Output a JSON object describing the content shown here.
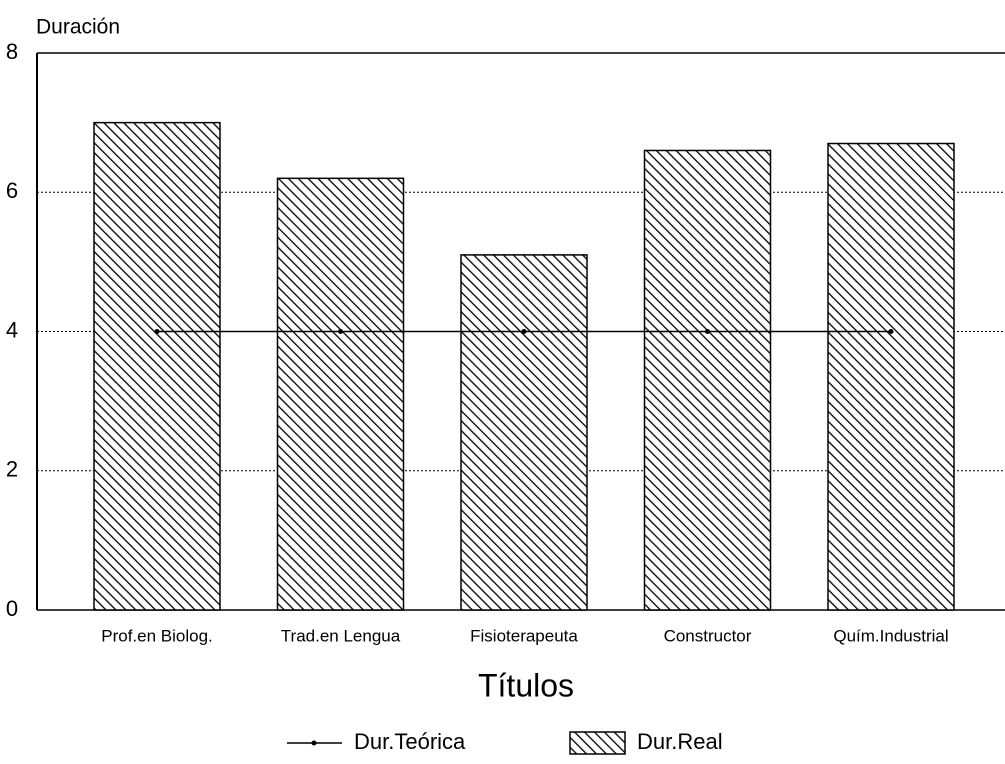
{
  "chart_data": {
    "type": "bar",
    "ylabel": "Duración",
    "xlabel": "Títulos",
    "categories": [
      "Prof.en Biolog.",
      "Trad.en Lengua",
      "Fisioterapeuta",
      "Constructor",
      "Quím.Industrial"
    ],
    "series": [
      {
        "name": "Dur.Teórica",
        "type": "line",
        "color": "#000000",
        "values": [
          4,
          4,
          4,
          4,
          4
        ]
      },
      {
        "name": "Dur.Real",
        "type": "bar",
        "color": "#000000",
        "values": [
          7.0,
          6.2,
          5.1,
          6.6,
          6.7
        ]
      }
    ],
    "ylim": [
      0,
      8
    ],
    "yticks": [
      0,
      2,
      4,
      6,
      8
    ],
    "grid": true,
    "legend": "bottom"
  }
}
